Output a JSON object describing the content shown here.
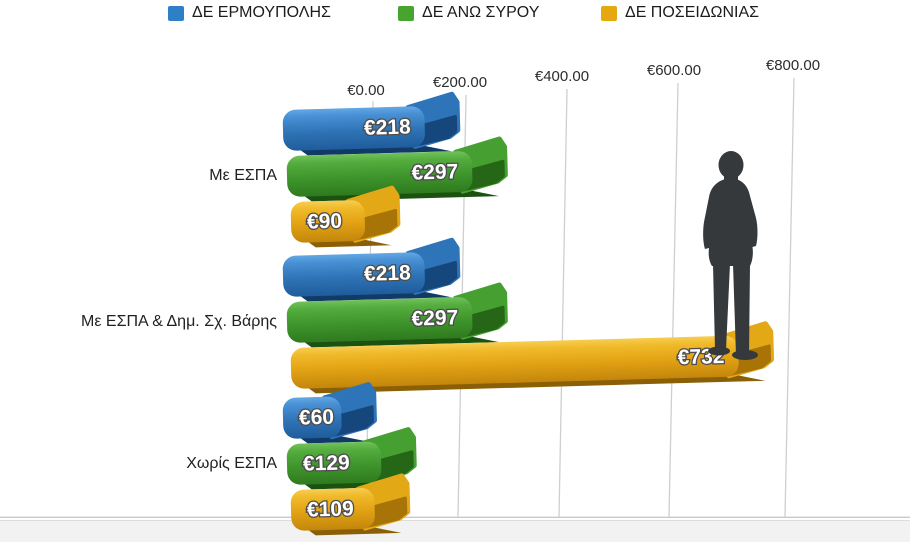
{
  "chart_data": {
    "type": "bar",
    "orientation": "horizontal",
    "currency_symbol": "€",
    "title": "",
    "categories": [
      "Με ΕΣΠΑ",
      "Με ΕΣΠΑ & Δημ. Σχ. Βάρης",
      "Χωρίς ΕΣΠΑ"
    ],
    "series": [
      {
        "name": "ΔΕ ΕΡΜΟΥΠΟΛΗΣ",
        "color": "#2e7fc8",
        "values": [
          218,
          218,
          60
        ]
      },
      {
        "name": "ΔΕ ΑΝΩ ΣΥΡΟΥ",
        "color": "#47a42e",
        "values": [
          297,
          297,
          129
        ]
      },
      {
        "name": "ΔΕ ΠΟΣΕΙΔΩΝΙΑΣ",
        "color": "#e5a90f",
        "values": [
          90,
          732,
          109
        ]
      }
    ],
    "value_labels": [
      [
        "€218",
        "€297",
        "€90"
      ],
      [
        "€218",
        "€297",
        "€732"
      ],
      [
        "€60",
        "€129",
        "€109"
      ]
    ],
    "x_ticks": [
      "€0.00",
      "€200.00",
      "€400.00",
      "€600.00",
      "€800.00"
    ],
    "xlim": [
      0,
      800
    ],
    "grid": "vertical",
    "legend_position": "top",
    "style": "glossy 3d horizontal bars",
    "decor": "dark man silhouette standing on the €732 bar"
  }
}
